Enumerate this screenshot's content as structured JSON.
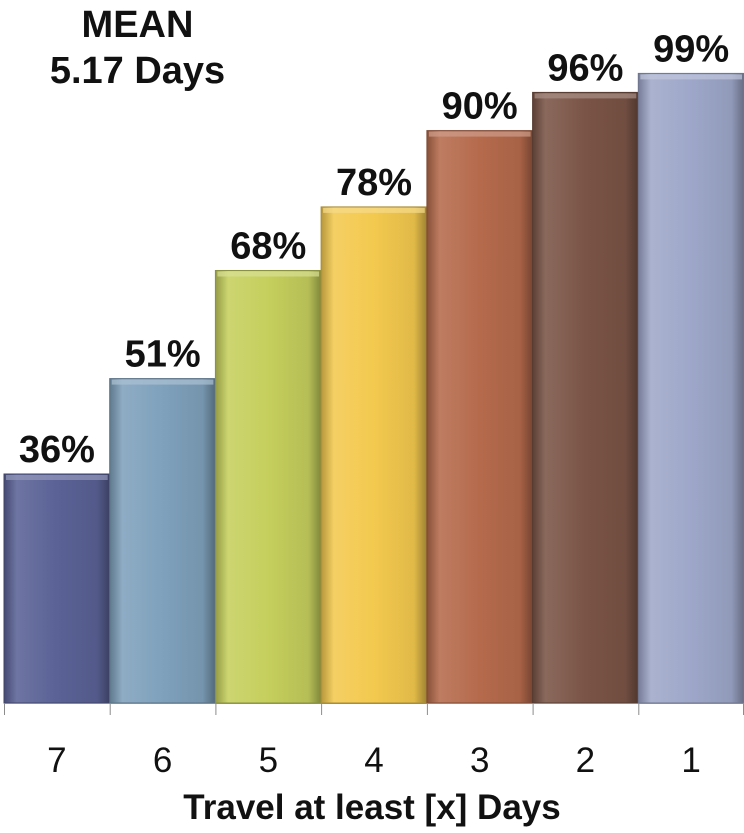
{
  "chart_data": {
    "type": "bar",
    "title": "MEAN",
    "subtitle": "5.17 Days",
    "xlabel": "Travel at least [x] Days",
    "ylabel": "",
    "categories": [
      "7",
      "6",
      "5",
      "4",
      "3",
      "2",
      "1"
    ],
    "values": [
      36,
      51,
      68,
      78,
      90,
      96,
      99
    ],
    "data_labels": [
      "36%",
      "51%",
      "68%",
      "78%",
      "90%",
      "96%",
      "99%"
    ],
    "unit": "%",
    "ylim": [
      0,
      100
    ],
    "grid": false,
    "legend": "none",
    "colors": [
      "#5a6296",
      "#7fa1bc",
      "#c5cf5c",
      "#f3c94e",
      "#b56a4c",
      "#7a5446",
      "#9ea7c9"
    ]
  }
}
